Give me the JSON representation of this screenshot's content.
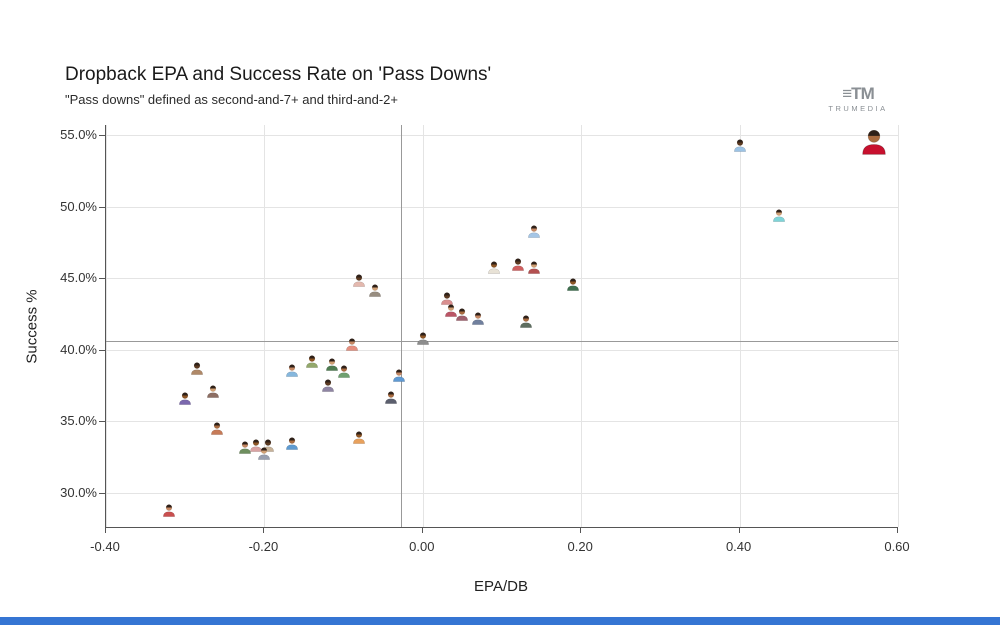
{
  "header": {
    "logo_word": "TRUMEDIA",
    "logo_mark": "≡TM"
  },
  "colors": {
    "bottom_bar": "#3575d3",
    "axis": "#555555",
    "grid": "#e4e4e4",
    "reference_line": "#999999",
    "highlight_jersey": "#c8102e",
    "skin_tones": [
      "#c68863",
      "#8d5524",
      "#5c3a21",
      "#d1a074",
      "#a96b3f"
    ],
    "hair": "#2e2018"
  },
  "chart_data": {
    "type": "scatter",
    "title": "Dropback EPA and Success Rate on 'Pass Downs'",
    "subtitle": "\"Pass downs\" defined as second-and-7+ and third-and-2+",
    "xlabel": "EPA/DB",
    "ylabel": "Success %",
    "xlim": [
      -0.4,
      0.6
    ],
    "ylim": [
      27.6,
      55.7
    ],
    "grid": true,
    "legend": "none",
    "marker_style": "player-headshot",
    "x_ticks": [
      {
        "v": -0.4,
        "label": "-0.40"
      },
      {
        "v": -0.2,
        "label": "-0.20"
      },
      {
        "v": 0.0,
        "label": "0.00"
      },
      {
        "v": 0.2,
        "label": "0.20"
      },
      {
        "v": 0.4,
        "label": "0.40"
      },
      {
        "v": 0.6,
        "label": "0.60"
      }
    ],
    "y_ticks": [
      {
        "v": 55,
        "label": "55.0%"
      },
      {
        "v": 50,
        "label": "50.0%"
      },
      {
        "v": 45,
        "label": "45.0%"
      },
      {
        "v": 40,
        "label": "40.0%"
      },
      {
        "v": 35,
        "label": "35.0%"
      },
      {
        "v": 30,
        "label": "30.0%"
      }
    ],
    "reference_lines": {
      "x": -0.028,
      "y": 40.6
    },
    "points": [
      {
        "x": -0.32,
        "y": 28.8,
        "jersey": "#c94f4f"
      },
      {
        "x": -0.3,
        "y": 36.6,
        "jersey": "#7b68ae"
      },
      {
        "x": -0.285,
        "y": 38.7,
        "jersey": "#b08968"
      },
      {
        "x": -0.265,
        "y": 37.1,
        "jersey": "#8d6e63"
      },
      {
        "x": -0.26,
        "y": 34.5,
        "jersey": "#c77b58"
      },
      {
        "x": -0.225,
        "y": 33.2,
        "jersey": "#6f8f5f"
      },
      {
        "x": -0.21,
        "y": 33.3,
        "jersey": "#d9a3a3"
      },
      {
        "x": -0.195,
        "y": 33.3,
        "jersey": "#c7b299"
      },
      {
        "x": -0.2,
        "y": 32.8,
        "jersey": "#9aa0b0"
      },
      {
        "x": -0.165,
        "y": 33.5,
        "jersey": "#5f9bd1"
      },
      {
        "x": -0.165,
        "y": 38.6,
        "jersey": "#86b7dd"
      },
      {
        "x": -0.14,
        "y": 39.2,
        "jersey": "#93a86b"
      },
      {
        "x": -0.12,
        "y": 37.5,
        "jersey": "#8f85a3"
      },
      {
        "x": -0.115,
        "y": 39.0,
        "jersey": "#4f7d52"
      },
      {
        "x": -0.1,
        "y": 38.5,
        "jersey": "#6fa070"
      },
      {
        "x": -0.09,
        "y": 40.4,
        "jersey": "#e58f7f"
      },
      {
        "x": -0.08,
        "y": 33.9,
        "jersey": "#e8a15d"
      },
      {
        "x": -0.08,
        "y": 44.9,
        "jersey": "#e3b8ae"
      },
      {
        "x": -0.06,
        "y": 44.2,
        "jersey": "#988d80"
      },
      {
        "x": -0.04,
        "y": 36.7,
        "jersey": "#5c5f6e"
      },
      {
        "x": -0.03,
        "y": 38.2,
        "jersey": "#5f9ad3"
      },
      {
        "x": 0.0,
        "y": 40.8,
        "jersey": "#8d8d8d"
      },
      {
        "x": 0.03,
        "y": 43.6,
        "jersey": "#d98f8f"
      },
      {
        "x": 0.035,
        "y": 42.8,
        "jersey": "#bb5566"
      },
      {
        "x": 0.05,
        "y": 42.5,
        "jersey": "#a0606e"
      },
      {
        "x": 0.07,
        "y": 42.2,
        "jersey": "#71809e"
      },
      {
        "x": 0.09,
        "y": 45.8,
        "jersey": "#e8e2d6"
      },
      {
        "x": 0.12,
        "y": 46.0,
        "jersey": "#cf5f5f"
      },
      {
        "x": 0.14,
        "y": 45.8,
        "jersey": "#b45151"
      },
      {
        "x": 0.13,
        "y": 42.0,
        "jersey": "#5e6e60"
      },
      {
        "x": 0.14,
        "y": 48.3,
        "jersey": "#a5c6e6"
      },
      {
        "x": 0.19,
        "y": 44.6,
        "jersey": "#3f6f4f"
      },
      {
        "x": 0.4,
        "y": 54.3,
        "jersey": "#9cc3e5"
      },
      {
        "x": 0.45,
        "y": 49.4,
        "jersey": "#7fd4d8"
      },
      {
        "x": 0.57,
        "y": 54.6,
        "jersey": "#c8102e",
        "highlight": true
      }
    ]
  }
}
